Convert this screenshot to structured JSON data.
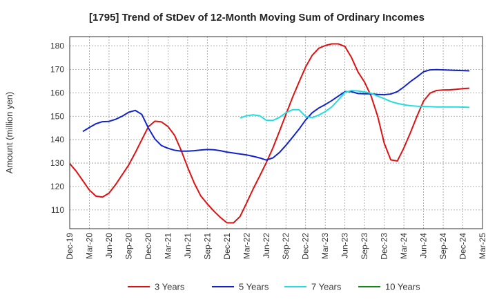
{
  "chart_data": {
    "type": "line",
    "title": "[1795]  Trend of StDev of 12-Month Moving Sum of Ordinary Incomes",
    "ylabel": "Amount (million yen)",
    "xlabel": "",
    "ylim": [
      102,
      184
    ],
    "yticks": [
      110,
      120,
      130,
      140,
      150,
      160,
      170,
      180
    ],
    "x_tick_labels": [
      "Dec-19",
      "Mar-20",
      "Jun-20",
      "Sep-20",
      "Dec-20",
      "Mar-21",
      "Jun-21",
      "Sep-21",
      "Dec-21",
      "Mar-22",
      "Jun-22",
      "Sep-22",
      "Dec-22",
      "Mar-23",
      "Jun-23",
      "Sep-23",
      "Dec-23",
      "Mar-24",
      "Jun-24",
      "Sep-24",
      "Dec-24",
      "Mar-25"
    ],
    "x_range_months": [
      0,
      63
    ],
    "grid": true,
    "legend_position": "bottom",
    "series": [
      {
        "name": "3 Years",
        "color": "#dd1111",
        "x": [
          0,
          1,
          2,
          3,
          4,
          5,
          6,
          7,
          8,
          9,
          10,
          11,
          12,
          13,
          14,
          15,
          16,
          17,
          18,
          19,
          20,
          21,
          22,
          23,
          24,
          25,
          26,
          27,
          28,
          29,
          30,
          31,
          32,
          33,
          34,
          35,
          36,
          37,
          38,
          39,
          40,
          41,
          42,
          43,
          44,
          45,
          46,
          47,
          48,
          49,
          50,
          51,
          52,
          53,
          54,
          55,
          56,
          57,
          58,
          59,
          60,
          61,
          62,
          63
        ],
        "values": [
          129.8,
          126.5,
          122.5,
          118.5,
          115.9,
          115.5,
          117.2,
          120.8,
          125.0,
          129.2,
          134.4,
          140.0,
          145.5,
          147.9,
          147.6,
          145.6,
          141.9,
          135.5,
          128.2,
          121.5,
          116.0,
          112.6,
          109.5,
          106.8,
          104.5,
          104.5,
          107.2,
          113.0,
          119.0,
          124.5,
          130.2,
          136.4,
          143.5,
          150.8,
          158.0,
          164.6,
          171.0,
          176.0,
          179.0,
          180.2,
          180.9,
          180.9,
          179.8,
          175.1,
          168.9,
          164.6,
          158.6,
          150.0,
          138.5,
          131.4,
          130.9,
          136.5,
          143.0,
          150.0,
          156.5,
          159.9,
          161.0,
          161.2,
          161.3,
          161.5,
          161.8,
          162.0,
          null,
          null
        ]
      },
      {
        "name": "5 Years",
        "color": "#1122cc",
        "x": [
          0,
          1,
          2,
          3,
          4,
          5,
          6,
          7,
          8,
          9,
          10,
          11,
          12,
          13,
          14,
          15,
          16,
          17,
          18,
          19,
          20,
          21,
          22,
          23,
          24,
          25,
          26,
          27,
          28,
          29,
          30,
          31,
          32,
          33,
          34,
          35,
          36,
          37,
          38,
          39,
          40,
          41,
          42,
          43,
          44,
          45,
          46,
          47,
          48,
          49,
          50,
          51,
          52,
          53,
          54,
          55,
          56,
          57,
          58,
          59,
          60,
          61,
          62,
          63
        ],
        "values": [
          null,
          null,
          143.5,
          145.2,
          146.8,
          147.7,
          147.8,
          148.7,
          150.0,
          151.7,
          152.5,
          150.8,
          145.0,
          140.3,
          137.5,
          136.3,
          135.5,
          135.1,
          135.1,
          135.3,
          135.6,
          135.8,
          135.7,
          135.3,
          134.7,
          134.3,
          133.9,
          133.5,
          132.9,
          132.2,
          131.3,
          132.2,
          134.5,
          137.6,
          141.0,
          144.5,
          148.4,
          151.5,
          153.5,
          155.0,
          156.7,
          158.6,
          160.5,
          160.5,
          159.7,
          159.6,
          159.6,
          159.3,
          159.2,
          159.5,
          160.5,
          162.5,
          164.8,
          166.8,
          169.0,
          169.8,
          169.9,
          169.8,
          169.7,
          169.6,
          169.5,
          169.4,
          null,
          null
        ]
      },
      {
        "name": "7 Years",
        "color": "#22dddd",
        "x": [
          0,
          1,
          2,
          3,
          4,
          5,
          6,
          7,
          8,
          9,
          10,
          11,
          12,
          13,
          14,
          15,
          16,
          17,
          18,
          19,
          20,
          21,
          22,
          23,
          24,
          25,
          26,
          27,
          28,
          29,
          30,
          31,
          32,
          33,
          34,
          35,
          36,
          37,
          38,
          39,
          40,
          41,
          42,
          43,
          44,
          45,
          46,
          47,
          48,
          49,
          50,
          51,
          52,
          53,
          54,
          55,
          56,
          57,
          58,
          59,
          60,
          61,
          62,
          63
        ],
        "values": [
          null,
          null,
          null,
          null,
          null,
          null,
          null,
          null,
          null,
          null,
          null,
          null,
          null,
          null,
          null,
          null,
          null,
          null,
          null,
          null,
          null,
          null,
          null,
          null,
          null,
          null,
          149.3,
          150.2,
          150.6,
          150.2,
          148.3,
          148.2,
          149.5,
          151.5,
          152.8,
          152.8,
          149.9,
          149.4,
          150.5,
          152.0,
          154.0,
          157.0,
          160.2,
          161.0,
          160.8,
          160.4,
          159.8,
          158.6,
          157.5,
          156.3,
          155.5,
          154.9,
          154.5,
          154.3,
          154.2,
          154.1,
          154.0,
          154.0,
          154.0,
          154.0,
          153.9,
          153.8,
          null,
          null
        ]
      },
      {
        "name": "10 Years",
        "color": "#118811",
        "x": [],
        "values": []
      }
    ]
  }
}
